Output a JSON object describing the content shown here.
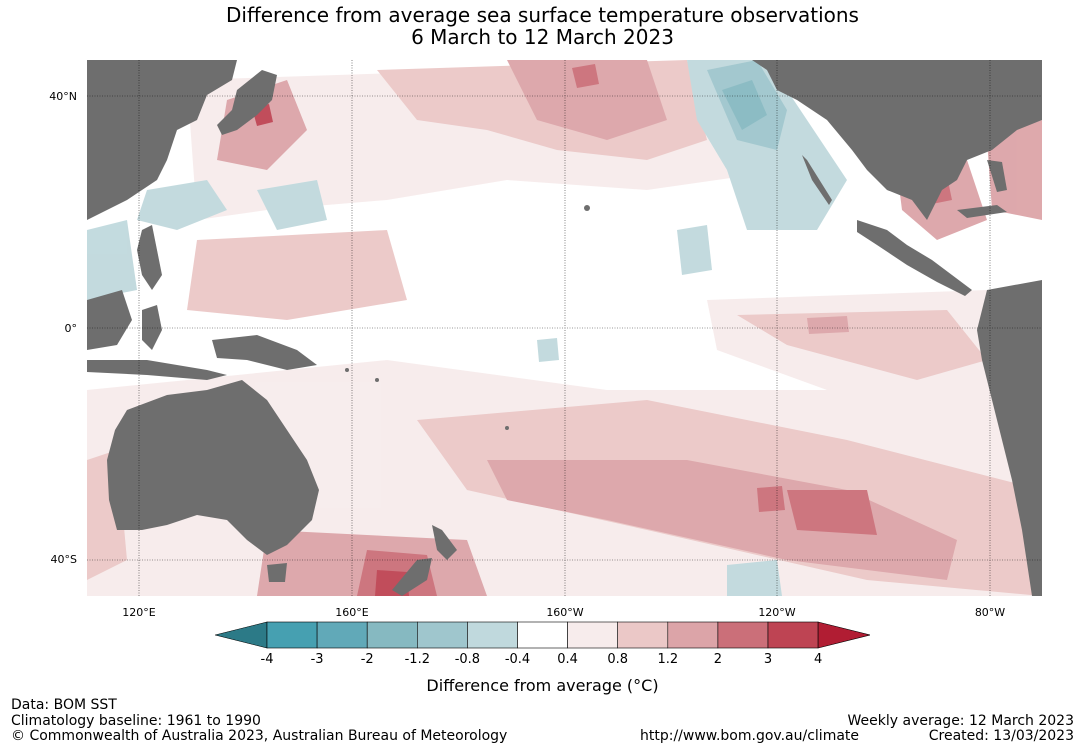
{
  "title": {
    "line1": "Difference from average sea surface temperature observations",
    "line2": "6 March to 12 March 2023"
  },
  "map": {
    "ocean_color": "#ffffff",
    "land_color": "#6e6e6e",
    "lat_labels": [
      "40°N",
      "0°",
      "40°S"
    ],
    "lon_labels": [
      "120°E",
      "160°E",
      "160°W",
      "120°W",
      "80°W"
    ],
    "regions": [
      {
        "name": "western-north-pacific-anomaly",
        "level": 0.8
      },
      {
        "name": "japan-warm-patch",
        "level": 2
      },
      {
        "name": "central-north-pacific-warm",
        "level": 1.2
      },
      {
        "name": "northeast-pacific-cool",
        "level": -1.2
      },
      {
        "name": "gulf-of-mexico-warm",
        "level": 2
      },
      {
        "name": "equatorial-east-pacific-warm",
        "level": 1.2
      },
      {
        "name": "south-pacific-warm-band",
        "level": 2
      },
      {
        "name": "tasman-sea-warm",
        "level": 3
      }
    ]
  },
  "colorbar": {
    "title": "Difference from average (°C)",
    "tick_labels": [
      "-4",
      "-3",
      "-2",
      "-1.2",
      "-0.8",
      "-0.4",
      "0.4",
      "0.8",
      "1.2",
      "2",
      "3",
      "4"
    ],
    "colors": [
      "#2c7a87",
      "#46a0b1",
      "#61a9b8",
      "#86b9c1",
      "#9fc6cd",
      "#c0d9dd",
      "#ffffff",
      "#f7ecec",
      "#ebc8c7",
      "#dca4a8",
      "#cb6f79",
      "#be4453",
      "#b11d33"
    ]
  },
  "footer": {
    "data": "Data: BOM SST",
    "baseline": "Climatology baseline: 1961 to 1990",
    "copyright": "© Commonwealth of Australia 2023, Australian Bureau of Meteorology",
    "url": "http://www.bom.gov.au/climate",
    "weekly": "Weekly average: 12 March 2023",
    "created": "Created: 13/03/2023"
  }
}
